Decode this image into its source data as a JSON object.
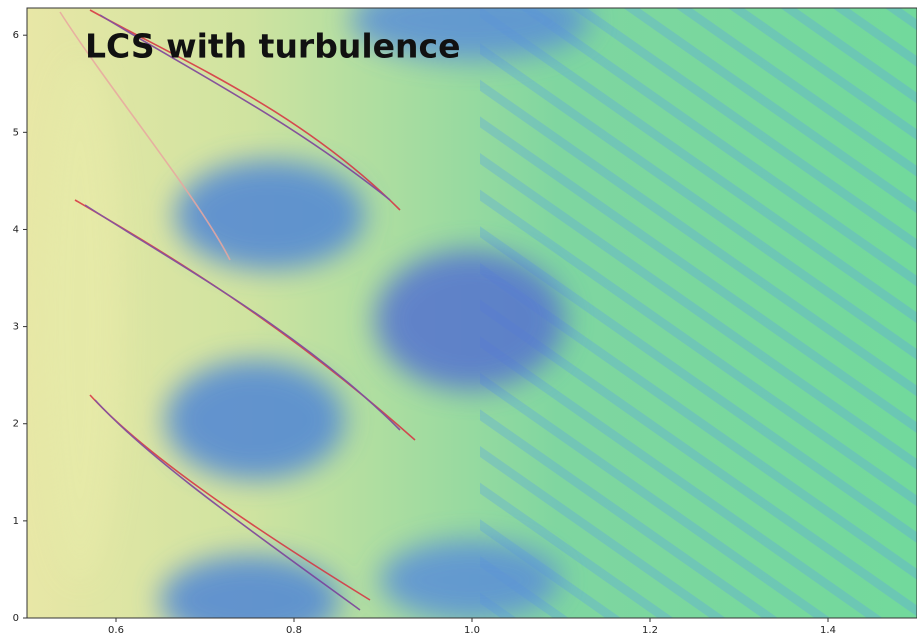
{
  "chart_data": {
    "type": "heatmap",
    "title": "LCS with turbulence",
    "xlim": [
      0.5,
      1.5
    ],
    "xticks": [
      0.6,
      0.8,
      {
        "value": 1,
        "label": "1.0"
      },
      1.2,
      1.4
    ],
    "ylim": [
      0,
      6.28
    ],
    "yticks": [
      0,
      1,
      2,
      3,
      4,
      5,
      6
    ]
  }
}
